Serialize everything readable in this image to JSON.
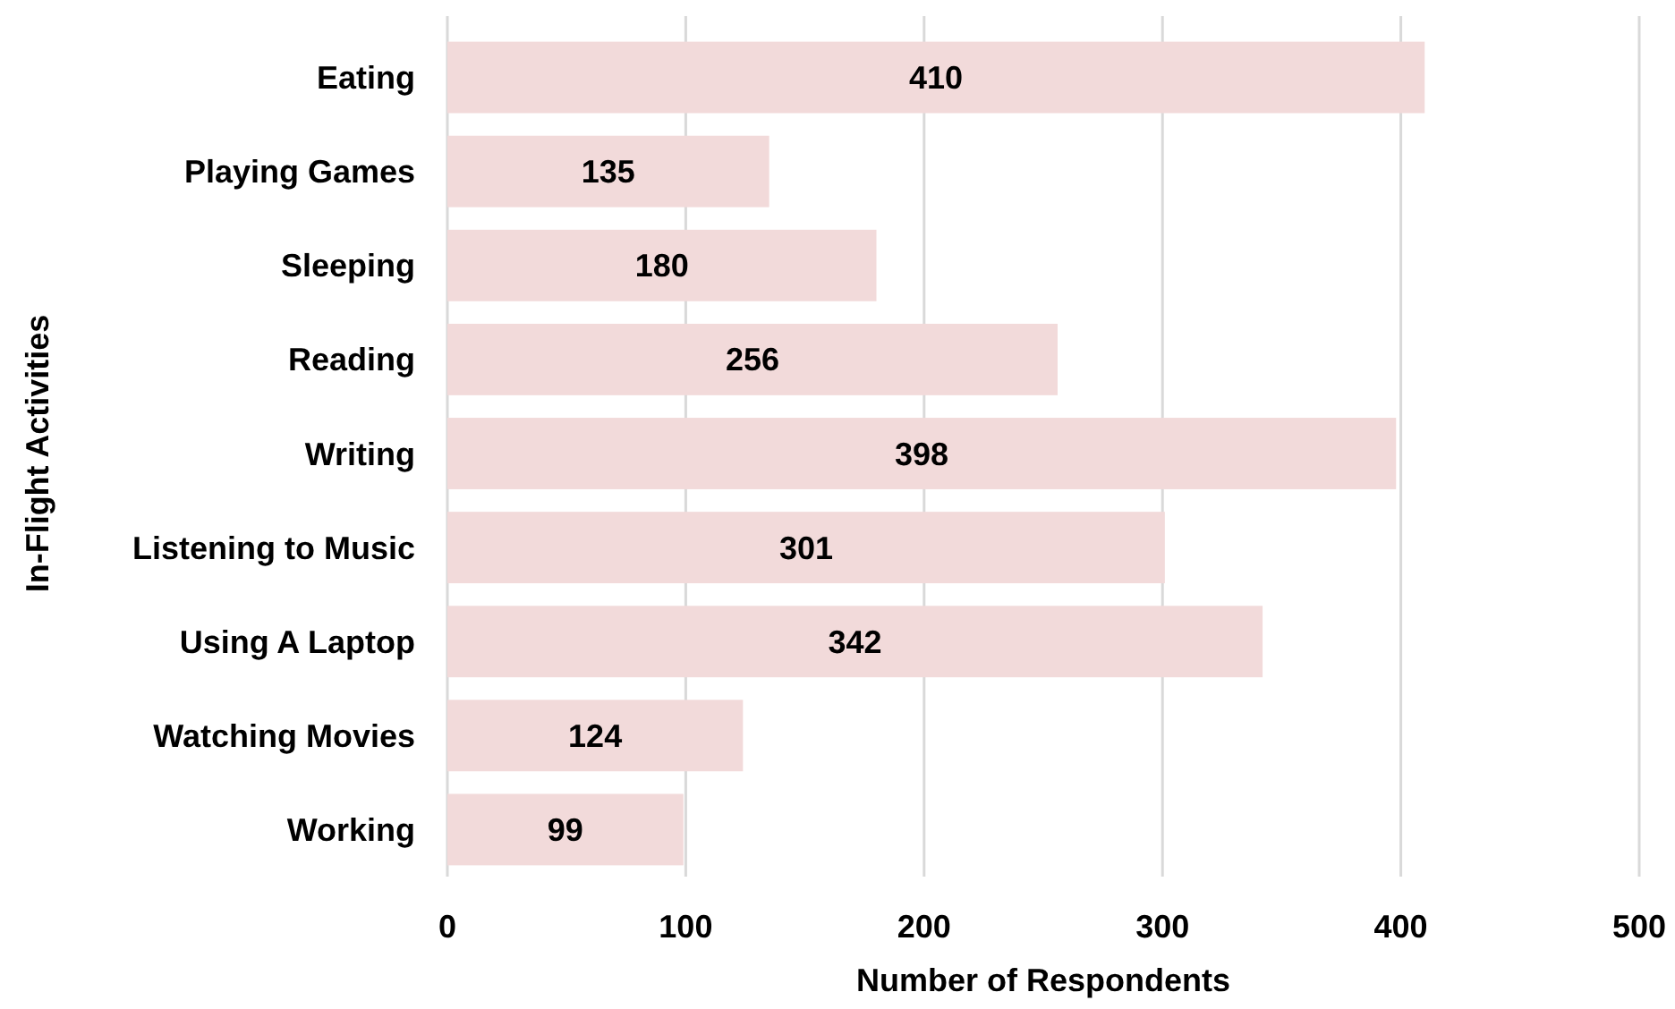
{
  "chart_data": {
    "type": "bar",
    "orientation": "horizontal",
    "xlabel": "Number of Respondents",
    "ylabel": "In-Flight Activities",
    "categories": [
      "Eating",
      "Playing Games",
      "Sleeping",
      "Reading",
      "Writing",
      "Listening to Music",
      "Using A Laptop",
      "Watching Movies",
      "Working"
    ],
    "values": [
      410,
      135,
      180,
      256,
      398,
      301,
      342,
      124,
      99
    ],
    "color": "#f2dada",
    "xlim": [
      0,
      500
    ],
    "xticks": [
      0,
      100,
      200,
      300,
      400,
      500
    ],
    "grid": "x",
    "data_labels": true
  }
}
